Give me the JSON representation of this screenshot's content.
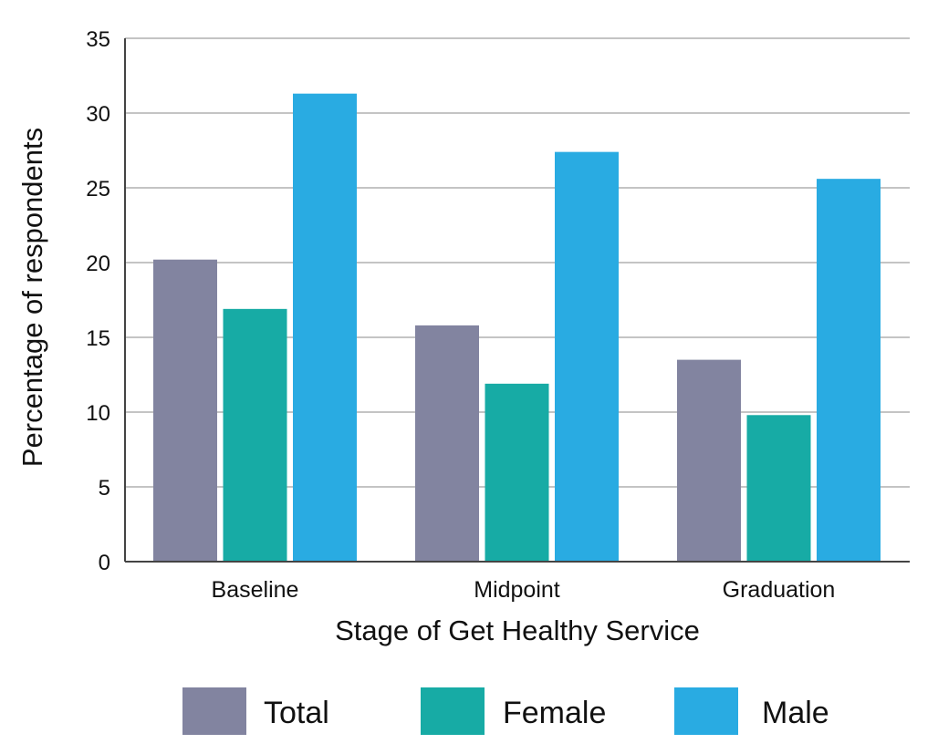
{
  "chart_data": {
    "type": "bar",
    "title": "",
    "xlabel": "Stage of Get Healthy Service",
    "ylabel": "Percentage of respondents",
    "categories": [
      "Baseline",
      "Midpoint",
      "Graduation"
    ],
    "ylim": [
      0,
      35
    ],
    "yticks": [
      0,
      5,
      10,
      15,
      20,
      25,
      30,
      35
    ],
    "grid": true,
    "legend_position": "bottom",
    "series": [
      {
        "name": "Total",
        "color": "#8284a0",
        "values": [
          20.2,
          15.8,
          13.5
        ]
      },
      {
        "name": "Female",
        "color": "#17aba5",
        "values": [
          16.9,
          11.9,
          9.8
        ]
      },
      {
        "name": "Male",
        "color": "#29abe2",
        "values": [
          31.3,
          27.4,
          25.6
        ]
      }
    ]
  }
}
